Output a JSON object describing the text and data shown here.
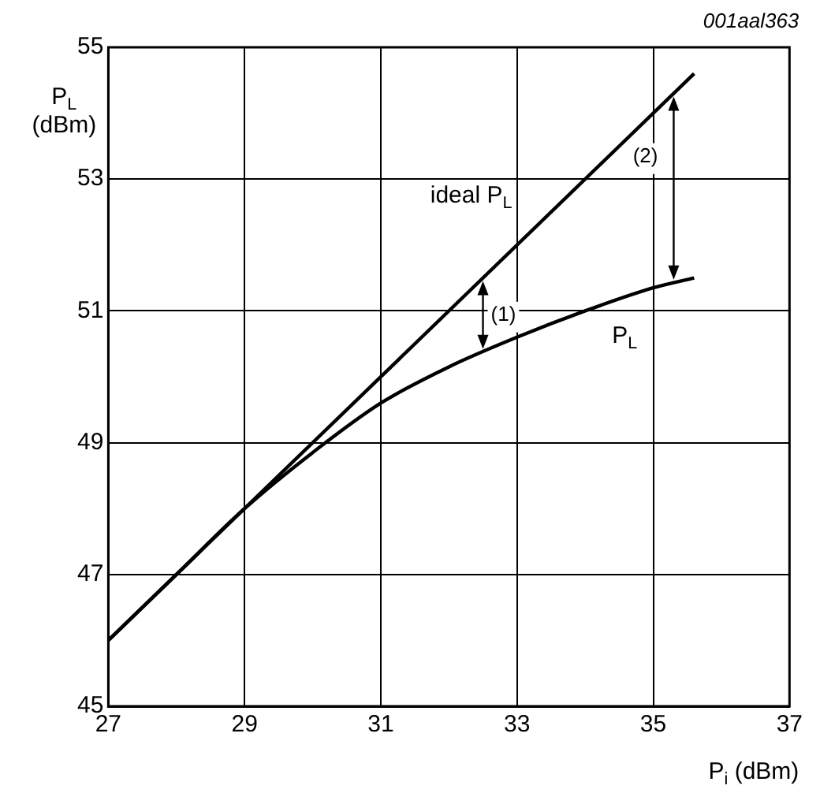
{
  "chart_data": {
    "type": "line",
    "xlabel": "P$_{i}$ (dBm)",
    "ylabel": "P$_{L}$\n(dBm)",
    "xlim": [
      27,
      37
    ],
    "xticks": [
      27,
      29,
      31,
      33,
      35,
      37
    ],
    "ylim": [
      45,
      55
    ],
    "yticks": [
      45,
      47,
      49,
      51,
      53,
      55
    ],
    "series": [
      {
        "name": "ideal P$_{L}$",
        "color": "#000000",
        "x": [
          27,
          35.6
        ],
        "values": [
          46,
          54.6
        ]
      },
      {
        "name": "P$_{L}$",
        "color": "#000000",
        "x": [
          27,
          28,
          29,
          30,
          31,
          32,
          33,
          34,
          35,
          35.6
        ],
        "values": [
          46,
          47,
          48,
          48.85,
          49.6,
          50.15,
          50.6,
          51.0,
          51.35,
          51.5
        ]
      }
    ],
    "annotations": [
      "001aal363",
      {
        "text": "(1)",
        "x": 32.5,
        "y": 51.5
      },
      {
        "text": "(2)",
        "x": 35.3,
        "y": 54.3
      }
    ],
    "grid": true,
    "legend": false,
    "marker": "none",
    "line_style": "solid"
  }
}
